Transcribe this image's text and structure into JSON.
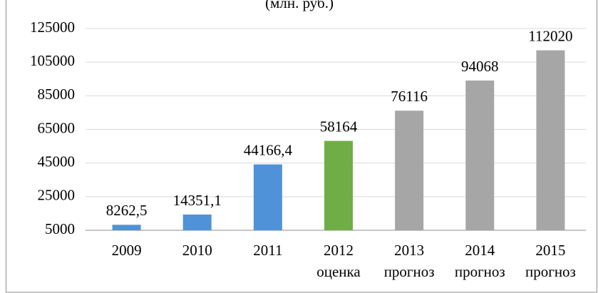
{
  "chart_data": {
    "type": "bar",
    "title": "(млн. руб.)",
    "categories": [
      [
        "2009"
      ],
      [
        "2010"
      ],
      [
        "2011"
      ],
      [
        "2012",
        "оценка"
      ],
      [
        "2013",
        "прогноз"
      ],
      [
        "2014",
        "прогноз"
      ],
      [
        "2015",
        "прогноз"
      ]
    ],
    "values": [
      8262.5,
      14351.1,
      44166.4,
      58164,
      76116,
      94068,
      112020
    ],
    "value_labels": [
      "8262,5",
      "14351,1",
      "44166,4",
      "58164",
      "76116",
      "94068",
      "112020"
    ],
    "colors": [
      "#4f92d8",
      "#4f92d8",
      "#4f92d8",
      "#70ad47",
      "#a6a6a6",
      "#a6a6a6",
      "#a6a6a6"
    ],
    "ylim": [
      5000,
      125000
    ],
    "yticks": [
      5000,
      25000,
      45000,
      65000,
      85000,
      105000,
      125000
    ],
    "grid": true
  }
}
